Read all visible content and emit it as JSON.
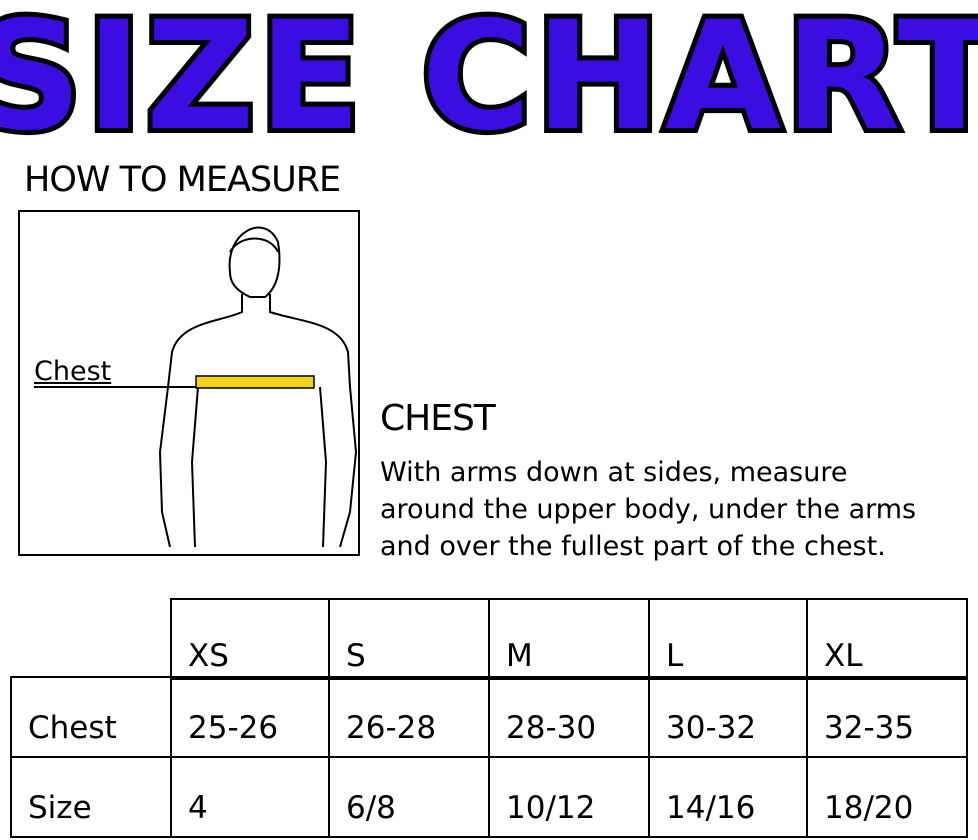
{
  "title": "SIZE CHART",
  "title_color": "#3a0ee0",
  "how_to_measure": "HOW TO MEASURE",
  "figure": {
    "label": "Chest",
    "tape_color": "#f2d21b"
  },
  "chest": {
    "heading": "CHEST",
    "lines": [
      "With arms down at sides, measure",
      "around the upper body, under the arms",
      "and over the fullest part of the chest."
    ]
  },
  "table": {
    "sizes": [
      "XS",
      "S",
      "M",
      "L",
      "XL"
    ],
    "rows": [
      {
        "label": "Chest",
        "values": [
          "25-26",
          "26-28",
          "28-30",
          "30-32",
          "32-35"
        ]
      },
      {
        "label": "Size",
        "values": [
          "4",
          "6/8",
          "10/12",
          "14/16",
          "18/20"
        ]
      }
    ]
  }
}
